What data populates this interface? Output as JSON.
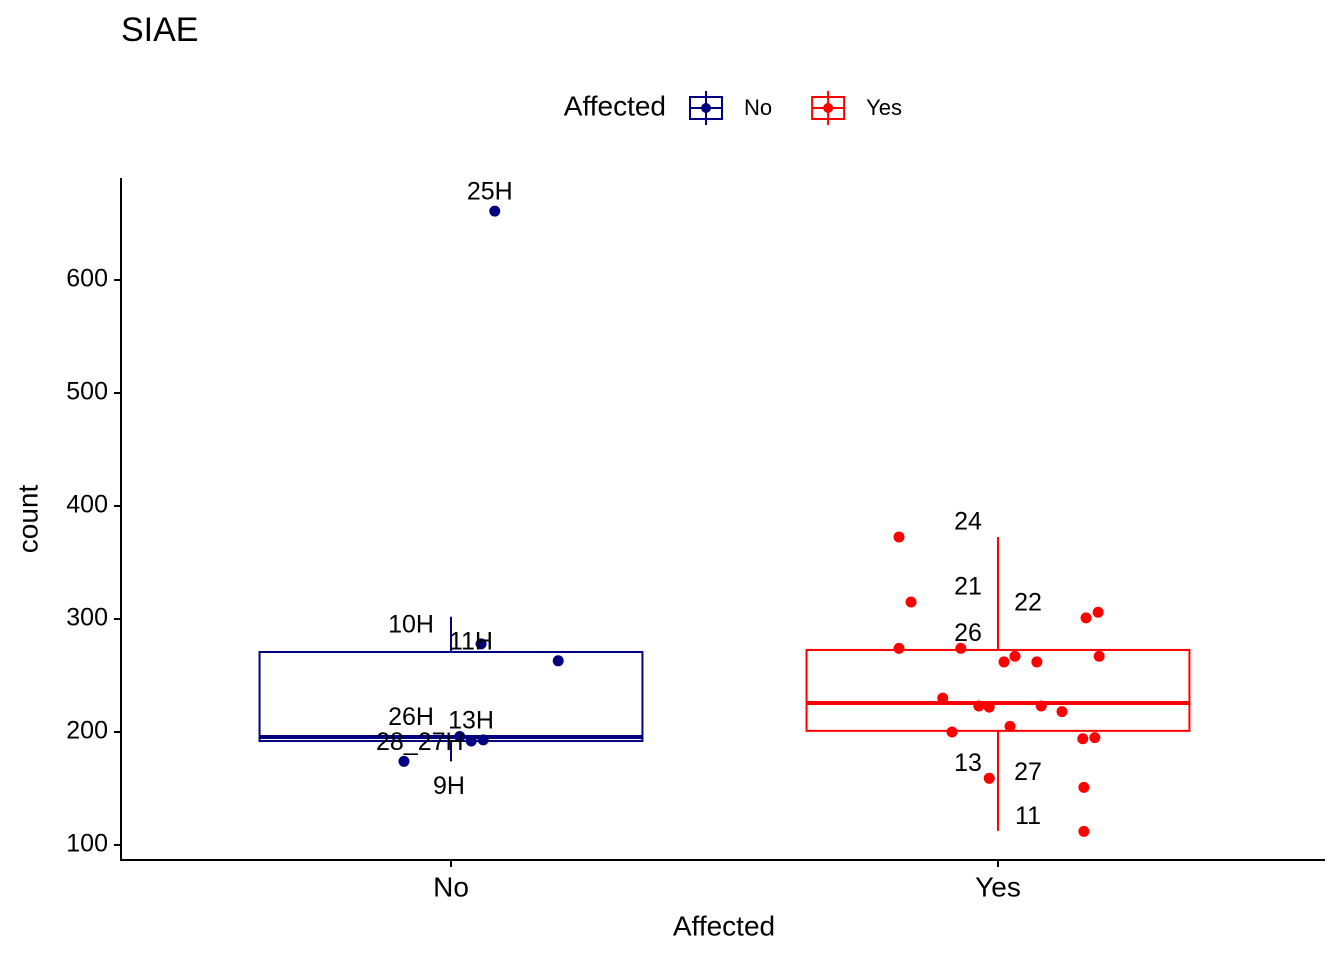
{
  "chart_data": {
    "type": "box",
    "title": "SIAE",
    "x_label": "Affected",
    "y_label": "count",
    "legend_title": "Affected",
    "ylim": [
      86.7,
      690.3
    ],
    "yticks": [
      100,
      200,
      300,
      400,
      500,
      600
    ],
    "categories": [
      "No",
      "Yes"
    ],
    "series": [
      {
        "name": "No",
        "color": "#000080",
        "whisker_low": 174,
        "q1": 192,
        "median": 195.6,
        "q3": 270.8,
        "whisker_high": 302,
        "points": [
          {
            "x": 0.08,
            "y": 661,
            "label": "25H"
          },
          {
            "x": 0.055,
            "y": 278,
            "label": "10H"
          },
          {
            "x": 0.196,
            "y": 263,
            "label": "11H"
          },
          {
            "x": 0.016,
            "y": 196,
            "label": "26H"
          },
          {
            "x": 0.059,
            "y": 193,
            "label": "13H"
          },
          {
            "x": 0.037,
            "y": 192
          },
          {
            "x": -0.086,
            "y": 174,
            "label": "28_27H"
          }
        ],
        "extra_labels": [
          "9H"
        ]
      },
      {
        "name": "Yes",
        "color": "#ff0000",
        "whisker_low": 112.4,
        "q1": 201,
        "median": 225.7,
        "q3": 272.6,
        "whisker_high": 372.6,
        "points": [
          {
            "x": -0.181,
            "y": 372.6,
            "label": "24"
          },
          {
            "x": -0.159,
            "y": 315,
            "label": "21"
          },
          {
            "x": -0.181,
            "y": 274
          },
          {
            "x": -0.068,
            "y": 274,
            "label": "26"
          },
          {
            "x": 0.011,
            "y": 262
          },
          {
            "x": 0.031,
            "y": 267
          },
          {
            "x": 0.071,
            "y": 262
          },
          {
            "x": 0.161,
            "y": 301,
            "label": "22"
          },
          {
            "x": 0.183,
            "y": 306
          },
          {
            "x": 0.185,
            "y": 267
          },
          {
            "x": -0.101,
            "y": 230
          },
          {
            "x": -0.035,
            "y": 223
          },
          {
            "x": -0.016,
            "y": 222
          },
          {
            "x": 0.079,
            "y": 223
          },
          {
            "x": 0.117,
            "y": 218
          },
          {
            "x": -0.084,
            "y": 200
          },
          {
            "x": 0.022,
            "y": 205
          },
          {
            "x": 0.155,
            "y": 194
          },
          {
            "x": 0.177,
            "y": 195
          },
          {
            "x": -0.016,
            "y": 159,
            "label": "13"
          },
          {
            "x": 0.157,
            "y": 151,
            "label": "27"
          },
          {
            "x": 0.157,
            "y": 112,
            "label": "11"
          }
        ]
      }
    ]
  }
}
